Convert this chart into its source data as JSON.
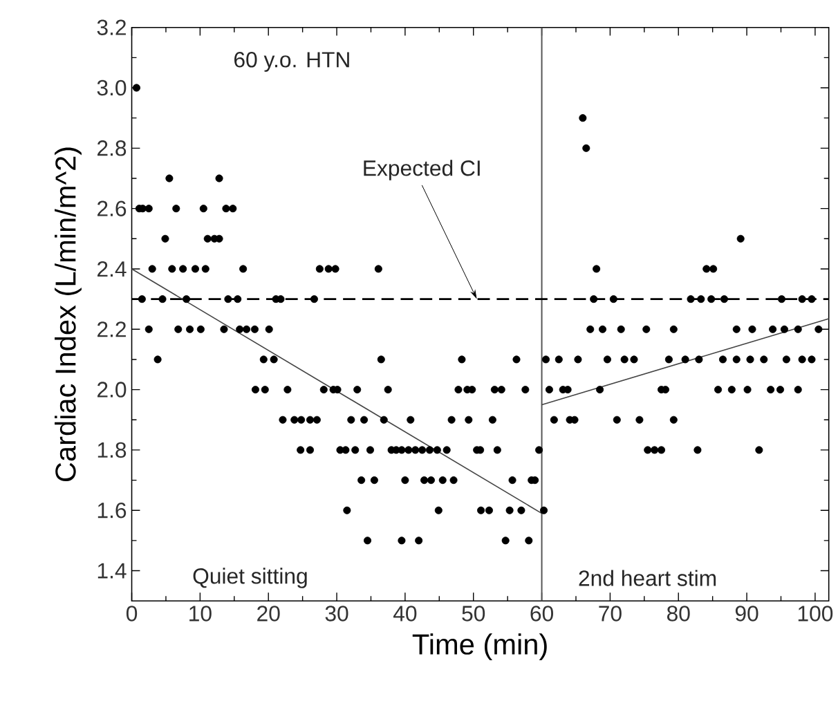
{
  "chart_data": {
    "type": "scatter",
    "xlabel": "Time (min)",
    "ylabel": "Cardiac Index (L/min/m^2)",
    "xlim": [
      0,
      102
    ],
    "ylim": [
      1.3,
      3.2
    ],
    "xticks": [
      0,
      10,
      20,
      30,
      40,
      50,
      60,
      70,
      80,
      90,
      100
    ],
    "yticks": [
      {
        "value": 1.4,
        "label": "1.4"
      },
      {
        "value": 1.6,
        "label": "1.6"
      },
      {
        "value": 1.8,
        "label": "1.8"
      },
      {
        "value": 2.0,
        "label": "2.0"
      },
      {
        "value": 2.2,
        "label": "2.2"
      },
      {
        "value": 2.4,
        "label": "2.4"
      },
      {
        "value": 2.6,
        "label": "2.6"
      },
      {
        "value": 2.8,
        "label": "2.8"
      },
      {
        "value": 3.0,
        "label": "3.0"
      },
      {
        "value": 3.2,
        "label": "3.2"
      }
    ],
    "series": [
      {
        "marker": "circle",
        "color": "#000000",
        "x": [
          0.7,
          66,
          66.5,
          5.5,
          12.8,
          1.1,
          1.6,
          2.5,
          6.5,
          10.5,
          13.8,
          14.8,
          4.9,
          11.1,
          12.1,
          12.8,
          89.1,
          3,
          5.9,
          7.5,
          9.3,
          10.8,
          16.3,
          27.5,
          28.8,
          29.8,
          36.1,
          68,
          84.1,
          85.1,
          1.5,
          4.5,
          8,
          14.1,
          15.5,
          21.1,
          21.8,
          26.7,
          67.6,
          70.5,
          81.8,
          83.3,
          84.8,
          86.7,
          95.1,
          98.1,
          99.5,
          2.5,
          6.8,
          8.5,
          10.1,
          13.5,
          15.8,
          16.8,
          18,
          20.1,
          67.1,
          68.9,
          71.6,
          75.3,
          79.3,
          88.5,
          90.8,
          93.8,
          95.5,
          97.5,
          100.5,
          3.8,
          19.3,
          20.8,
          36.5,
          48.3,
          56.3,
          60.6,
          62.5,
          65.3,
          69.6,
          72.1,
          73.5,
          78.6,
          81,
          83,
          86.5,
          88.5,
          90.5,
          92.5,
          95.8,
          98.1,
          99.5,
          18.1,
          19.5,
          22.8,
          28.1,
          29.5,
          30.1,
          33,
          37.5,
          47.8,
          49.1,
          49.8,
          53.1,
          54.1,
          57.6,
          61.1,
          63.1,
          63.8,
          68.5,
          77.5,
          78.1,
          85.8,
          87.8,
          90.1,
          93.5,
          94.9,
          97.5,
          22.1,
          23.8,
          24.8,
          26.1,
          27.1,
          32.1,
          34,
          36.9,
          40.8,
          46.8,
          49.3,
          52.8,
          61.8,
          64.1,
          64.8,
          71,
          74.3,
          79.3,
          24.7,
          26.1,
          30.5,
          31.3,
          32.7,
          34.9,
          38,
          38.7,
          39.5,
          40.5,
          41.5,
          42.5,
          43.6,
          44.7,
          46.1,
          50.5,
          51,
          53.5,
          59.6,
          75.5,
          76.5,
          77.5,
          82.8,
          91.8,
          33.6,
          35.5,
          40,
          42.8,
          43.8,
          45.5,
          47.1,
          55.7,
          58.5,
          59,
          31.5,
          44.9,
          51.1,
          52.3,
          55.3,
          57,
          60.3,
          34.5,
          39.5,
          42,
          54.7,
          58.1
        ],
        "values": [
          3.0,
          2.9,
          2.8,
          2.7,
          2.7,
          2.6,
          2.6,
          2.6,
          2.6,
          2.6,
          2.6,
          2.6,
          2.5,
          2.5,
          2.5,
          2.5,
          2.5,
          2.4,
          2.4,
          2.4,
          2.4,
          2.4,
          2.4,
          2.4,
          2.4,
          2.4,
          2.4,
          2.4,
          2.4,
          2.4,
          2.3,
          2.3,
          2.3,
          2.3,
          2.3,
          2.3,
          2.3,
          2.3,
          2.3,
          2.3,
          2.3,
          2.3,
          2.3,
          2.3,
          2.3,
          2.3,
          2.3,
          2.2,
          2.2,
          2.2,
          2.2,
          2.2,
          2.2,
          2.2,
          2.2,
          2.2,
          2.2,
          2.2,
          2.2,
          2.2,
          2.2,
          2.2,
          2.2,
          2.2,
          2.2,
          2.2,
          2.2,
          2.1,
          2.1,
          2.1,
          2.1,
          2.1,
          2.1,
          2.1,
          2.1,
          2.1,
          2.1,
          2.1,
          2.1,
          2.1,
          2.1,
          2.1,
          2.1,
          2.1,
          2.1,
          2.1,
          2.1,
          2.1,
          2.1,
          2.0,
          2.0,
          2.0,
          2.0,
          2.0,
          2.0,
          2.0,
          2.0,
          2.0,
          2.0,
          2.0,
          2.0,
          2.0,
          2.0,
          2.0,
          2.0,
          2.0,
          2.0,
          2.0,
          2.0,
          2.0,
          2.0,
          2.0,
          2.0,
          2.0,
          2.0,
          1.9,
          1.9,
          1.9,
          1.9,
          1.9,
          1.9,
          1.9,
          1.9,
          1.9,
          1.9,
          1.9,
          1.9,
          1.9,
          1.9,
          1.9,
          1.9,
          1.9,
          1.9,
          1.8,
          1.8,
          1.8,
          1.8,
          1.8,
          1.8,
          1.8,
          1.8,
          1.8,
          1.8,
          1.8,
          1.8,
          1.8,
          1.8,
          1.8,
          1.8,
          1.8,
          1.8,
          1.8,
          1.8,
          1.8,
          1.8,
          1.8,
          1.8,
          1.7,
          1.7,
          1.7,
          1.7,
          1.7,
          1.7,
          1.7,
          1.7,
          1.7,
          1.7,
          1.6,
          1.6,
          1.6,
          1.6,
          1.6,
          1.6,
          1.6,
          1.5,
          1.5,
          1.5,
          1.5,
          1.5
        ]
      },
      {
        "type": "line",
        "marker": "none",
        "color": "#444444",
        "x": [
          0,
          60
        ],
        "values": [
          2.4,
          1.59
        ]
      },
      {
        "type": "line",
        "marker": "none",
        "color": "#444444",
        "x": [
          60,
          102
        ],
        "values": [
          1.95,
          2.235
        ]
      }
    ],
    "ref_lines": [
      {
        "axis": "x",
        "value": 60,
        "color": "#555555"
      },
      {
        "axis": "y",
        "value": 2.3,
        "line_style": "dashed",
        "color": "#000000"
      }
    ],
    "annotations": [
      "60 y.o. HTN",
      {
        "text": "Expected CI",
        "x": 50.5,
        "y": 2.3
      },
      "Quiet sitting",
      "2nd heart stim"
    ]
  }
}
